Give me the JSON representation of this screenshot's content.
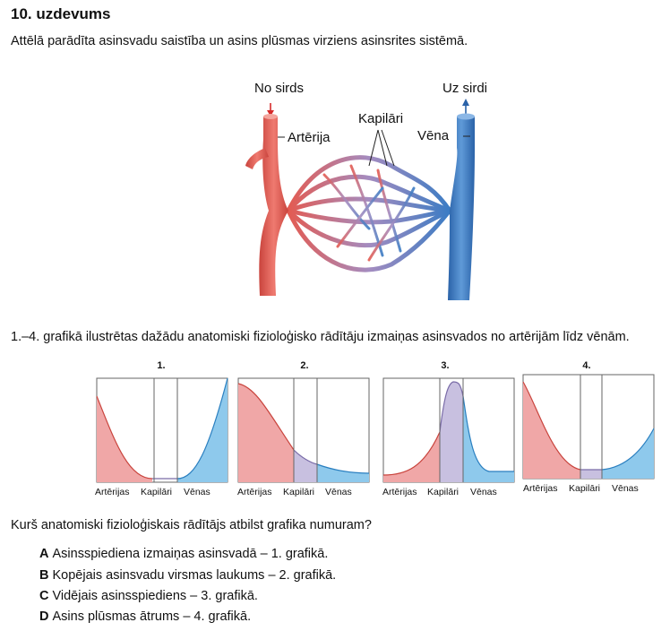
{
  "title": "10. uzdevums",
  "intro": "Attēlā parādīta asinsvadu saistība un asins plūsmas virziens asinsrites sistēmā.",
  "diagram": {
    "from_heart": "No sirds",
    "to_heart": "Uz sirdi",
    "artery": "Artērija",
    "capillaries": "Kapilāri",
    "vein": "Vēna",
    "colors": {
      "artery": "#e35b52",
      "vein": "#3b7cc4"
    }
  },
  "subtitle": "1.–4. grafikā ilustrētas dažādu anatomiski fizioloģisko rādītāju izmaiņas asinsvados no artērijām līdz vēnām.",
  "graphs": [
    {
      "number": "1.",
      "labels": [
        "Artērijas",
        "Kapilāri",
        "Vēnas"
      ]
    },
    {
      "number": "2.",
      "labels": [
        "Artērijas",
        "Kapilāri",
        "Vēnas"
      ]
    },
    {
      "number": "3.",
      "labels": [
        "Artērijas",
        "Kapilāri",
        "Vēnas"
      ]
    },
    {
      "number": "4.",
      "labels": [
        "Artērijas",
        "Kapilāri",
        "Vēnas"
      ]
    }
  ],
  "question": "Kurš anatomiski fizioloģiskais rādītājs atbilst grafika numuram?",
  "options": [
    {
      "letter": "A",
      "text": "Asinsspiediena izmaiņas asinsvadā – 1. grafikā."
    },
    {
      "letter": "B",
      "text": "Kopējais asinsvadu virsmas laukums – 2. grafikā."
    },
    {
      "letter": "C",
      "text": "Vidējais asinsspiediens – 3. grafikā."
    },
    {
      "letter": "D",
      "text": "Asins plūsmas ātrums – 4. grafikā."
    }
  ]
}
